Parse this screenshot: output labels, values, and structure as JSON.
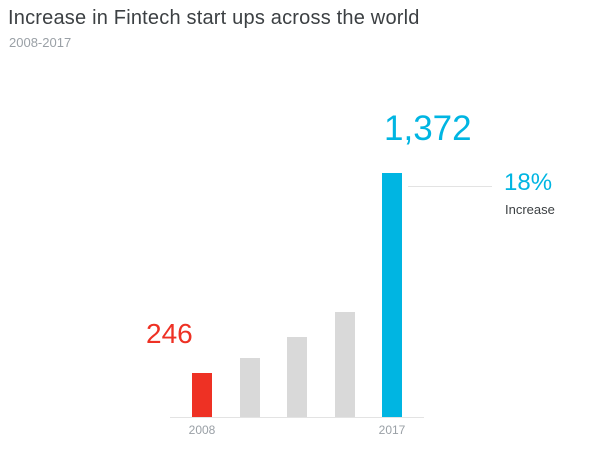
{
  "header": {
    "title": "Increase in Fintech start ups across the world",
    "subtitle": "2008-2017"
  },
  "chart_data": {
    "type": "bar",
    "title": "Increase in Fintech start ups across the world",
    "subtitle": "2008-2017",
    "categories": [
      "2008",
      "",
      "",
      "",
      "2017"
    ],
    "values": [
      246,
      330,
      450,
      590,
      1372
    ],
    "bar_colors": [
      "#ee3124",
      "#d9d9d9",
      "#d9d9d9",
      "#d9d9d9",
      "#00b5e2"
    ],
    "value_labels": {
      "first": "246",
      "last": "1,372"
    },
    "xtick_labels": [
      "2008",
      "2017"
    ],
    "annotation": {
      "value": "18%",
      "label": "Increase"
    },
    "ylim": [
      0,
      1372
    ],
    "grid": false,
    "legend": false,
    "accent_colors": {
      "red": "#ee3124",
      "cyan": "#00b5e2",
      "neutral_bar": "#d9d9d9",
      "title_text": "#3c4043",
      "muted_text": "#9aa0a6"
    }
  }
}
